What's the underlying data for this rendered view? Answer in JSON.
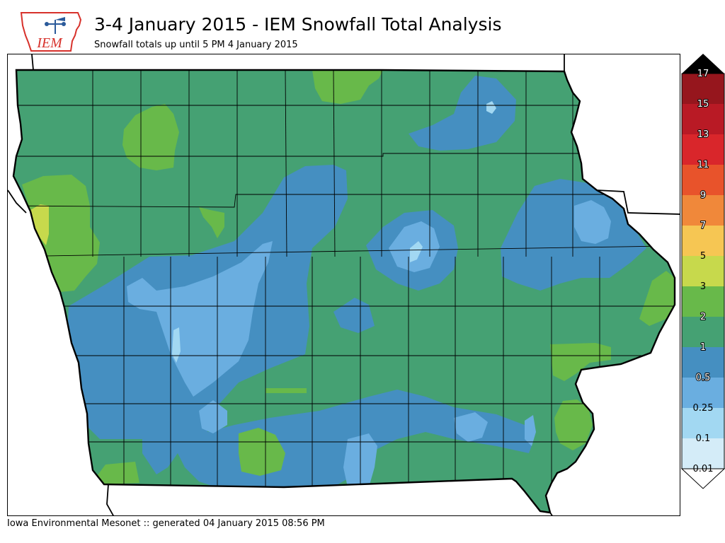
{
  "header": {
    "title": "3-4 January 2015 - IEM Snowfall Total Analysis",
    "subtitle": "Snowfall totals up until 5 PM 4 January 2015",
    "logo_text": "IEM"
  },
  "footer": {
    "text": "Iowa Environmental Mesonet :: generated 04 January 2015 08:56 PM"
  },
  "legend": {
    "levels": [
      "0.01",
      "0.1",
      "0.25",
      "0.5",
      "1",
      "2",
      "3",
      "5",
      "7",
      "9",
      "11",
      "13",
      "15",
      "17"
    ],
    "colors": [
      "#d4ecf8",
      "#a2d8f2",
      "#6aaee0",
      "#458fc1",
      "#45a173",
      "#68b94a",
      "#c7d94c",
      "#f6c653",
      "#f0883a",
      "#e8532b",
      "#d9262b",
      "#b91a25",
      "#96161d",
      "#000000"
    ]
  },
  "map": {
    "region": "Iowa",
    "base_color": "#45a173"
  }
}
